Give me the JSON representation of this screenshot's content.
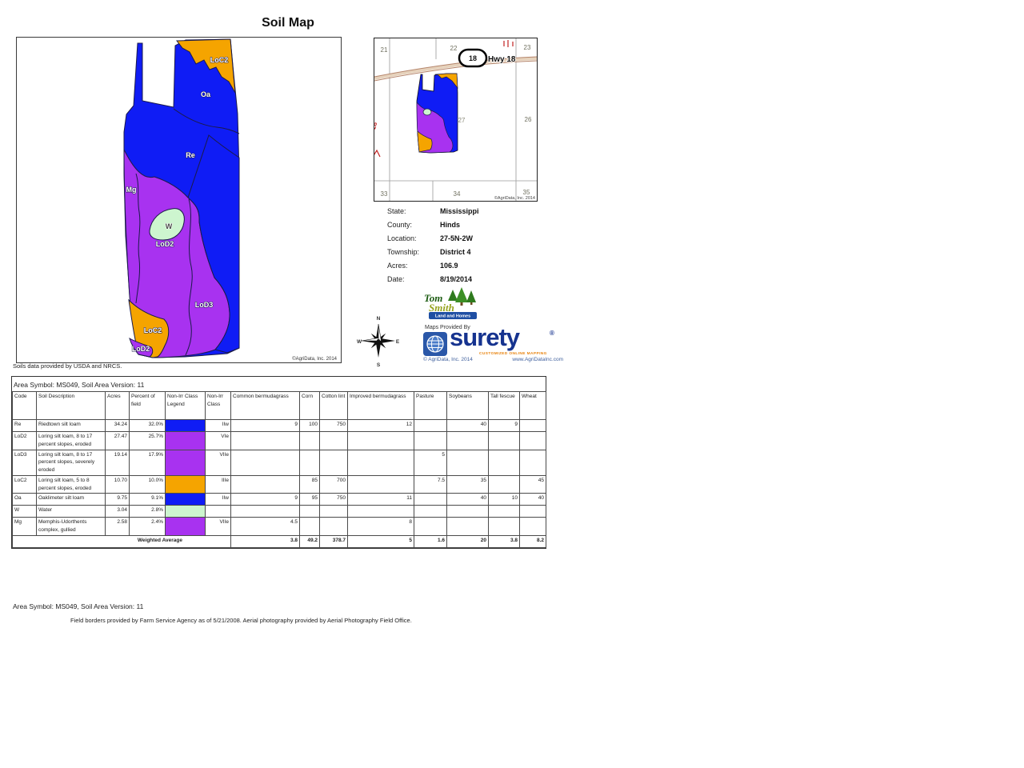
{
  "title": "Soil Map",
  "colors": {
    "blue": "#0f1cf5",
    "purple": "#a832f0",
    "orange": "#f5a400",
    "water_green": "#cdf5cf",
    "boundary": "#1b1b4a"
  },
  "map": {
    "labels": {
      "loc2_top": "LoC2",
      "oa": "Oa",
      "re": "Re",
      "mg": "Mg",
      "w": "W",
      "lod2": "LoD2",
      "lod3": "LoD3",
      "loc2_bottom": "LoC2",
      "lod2_bottom": "LoD2"
    },
    "copyright": "©AgriData, Inc. 2014",
    "soils_note": "Soils data provided by USDA and NRCS."
  },
  "locator": {
    "sections": {
      "s21": "21",
      "s22": "22",
      "s23": "23",
      "s26": "26",
      "s27": "27",
      "s33": "33",
      "s34": "34",
      "s35": "35"
    },
    "hwy_shield": "18",
    "hwy_label": "Hwy 18",
    "red_mark": "28",
    "copyright": "©AgriData, Inc. 2014"
  },
  "info": {
    "rows": [
      {
        "label": "State:",
        "value": "Mississippi"
      },
      {
        "label": "County:",
        "value": "Hinds"
      },
      {
        "label": "Location:",
        "value": "27-5N-2W"
      },
      {
        "label": "Township:",
        "value": "District 4"
      },
      {
        "label": "Acres:",
        "value": "106.9"
      },
      {
        "label": "Date:",
        "value": "8/19/2014"
      }
    ]
  },
  "branding": {
    "maps_provided_by": "Maps Provided By",
    "tom_smith": {
      "top": "Tom",
      "bottom": "Smith",
      "banner": "Land and Homes"
    },
    "surety": {
      "name": "surety",
      "reg": "®",
      "tagline": "CUSTOMIZED ONLINE MAPPING",
      "copyright": "© AgriData, Inc. 2014",
      "website": "www.AgriDataInc.com"
    },
    "compass": {
      "n": "N",
      "w": "W",
      "e": "E",
      "s": "S"
    }
  },
  "table": {
    "area_symbol_line": "Area Symbol: MS049, Soil Area Version: 11",
    "columns": [
      "Code",
      "Soil Description",
      "Acres",
      "Percent of field",
      "Non-Irr Class Legend",
      "Non-Irr Class",
      "Common bermudagrass",
      "Corn",
      "Cotton lint",
      "Improved bermudagrass",
      "Pasture",
      "Soybeans",
      "Tall fescue",
      "Wheat"
    ],
    "rows": [
      {
        "code": "Re",
        "description": "Riedtown silt loam",
        "acres": "34.24",
        "percent": "32.0%",
        "legend": "blue",
        "irr_class": "IIw",
        "values": [
          "9",
          "100",
          "750",
          "12",
          "",
          "40",
          "9",
          ""
        ]
      },
      {
        "code": "LoD2",
        "description": "Loring silt loam, 8 to 17 percent slopes, eroded",
        "acres": "27.47",
        "percent": "25.7%",
        "legend": "purple",
        "irr_class": "VIe",
        "values": [
          "",
          "",
          "",
          "",
          "",
          "",
          "",
          ""
        ]
      },
      {
        "code": "LoD3",
        "description": "Loring silt loam, 8 to 17 percent slopes, severely eroded",
        "acres": "19.14",
        "percent": "17.9%",
        "legend": "purple",
        "irr_class": "VIIe",
        "values": [
          "",
          "",
          "",
          "",
          "5",
          "",
          "",
          ""
        ]
      },
      {
        "code": "LoC2",
        "description": "Loring silt loam, 5 to 8 percent slopes, eroded",
        "acres": "10.70",
        "percent": "10.0%",
        "legend": "orange",
        "irr_class": "IIIe",
        "values": [
          "",
          "85",
          "700",
          "",
          "7.5",
          "35",
          "",
          "45"
        ]
      },
      {
        "code": "Oa",
        "description": "Oaklimeter silt loam",
        "acres": "9.75",
        "percent": "9.1%",
        "legend": "blue",
        "irr_class": "IIw",
        "values": [
          "9",
          "95",
          "750",
          "11",
          "",
          "40",
          "10",
          "40"
        ]
      },
      {
        "code": "W",
        "description": "Water",
        "acres": "3.04",
        "percent": "2.8%",
        "legend": "water_green",
        "irr_class": "",
        "values": [
          "",
          "",
          "",
          "",
          "",
          "",
          "",
          ""
        ]
      },
      {
        "code": "Mg",
        "description": "Memphis-Udorthents complex, gullied",
        "acres": "2.58",
        "percent": "2.4%",
        "legend": "purple",
        "irr_class": "VIIe",
        "values": [
          "4.5",
          "",
          "",
          "8",
          "",
          "",
          "",
          ""
        ]
      }
    ],
    "weighted_average": {
      "label": "Weighted Average",
      "values": [
        "3.8",
        "49.2",
        "378.7",
        "5",
        "1.6",
        "20",
        "3.8",
        "8.2"
      ]
    }
  },
  "footer": {
    "line1": "Area Symbol: MS049, Soil Area Version: 11",
    "line2": "Field borders provided by Farm Service Agency as of 5/21/2008. Aerial photography provided by Aerial Photography Field Office."
  }
}
